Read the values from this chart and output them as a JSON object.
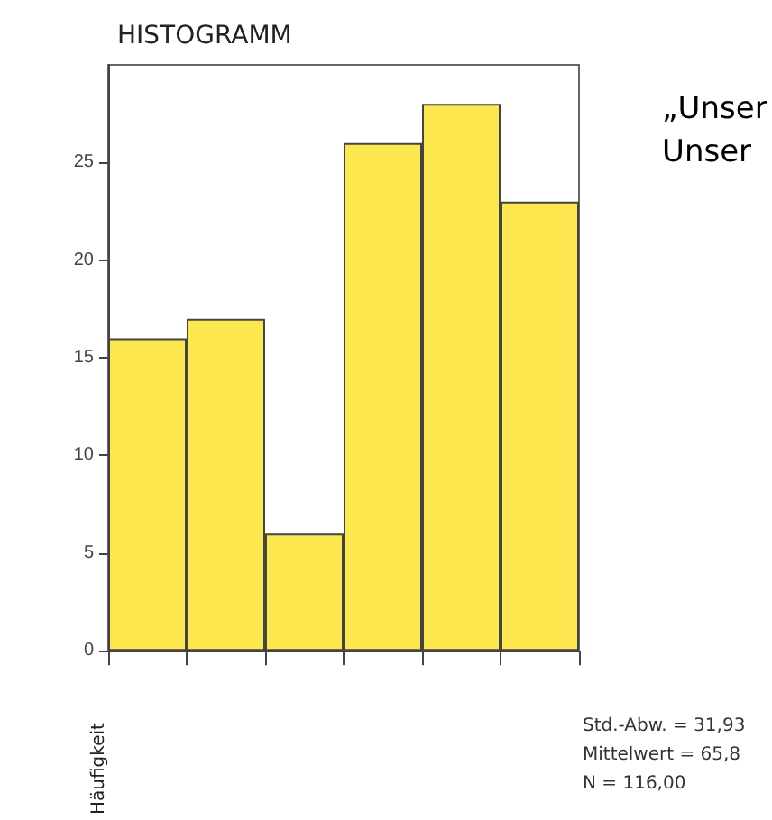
{
  "chart_data": {
    "type": "bar",
    "title": "HISTOGRAMM",
    "ylabel": "Häufigkeit",
    "categories": [
      null,
      null,
      null,
      null,
      null,
      null
    ],
    "values": [
      16,
      17,
      6,
      26,
      28,
      23
    ],
    "color": "#fce84e",
    "ylim": [
      0,
      30
    ],
    "yticks": [
      0,
      5,
      10,
      15,
      20,
      25
    ],
    "grid": false,
    "annotations": [
      "„Unser",
      "Unser",
      "Std.-Abw. = 31,93",
      "Mittelwert = 65,8",
      "N = 116,00"
    ]
  }
}
